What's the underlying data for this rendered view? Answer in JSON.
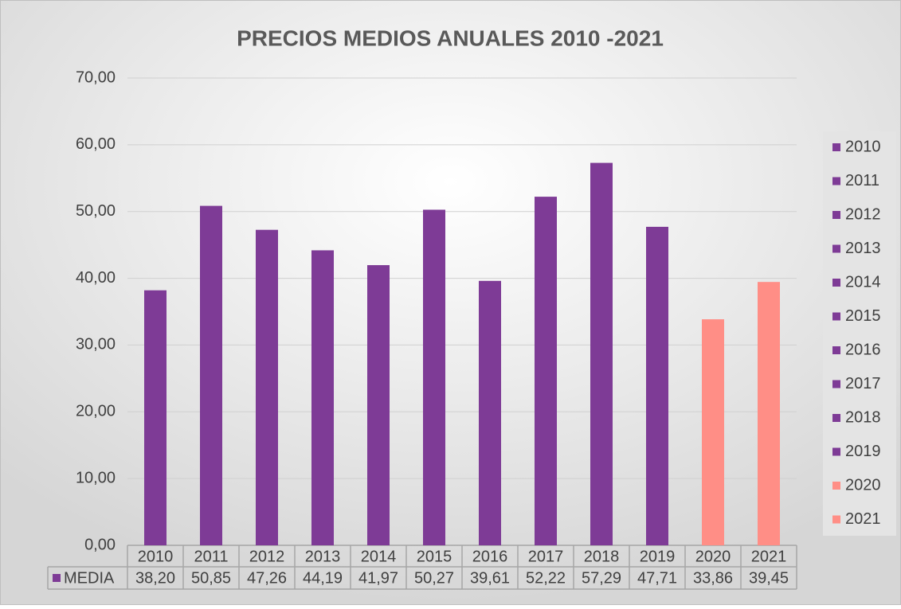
{
  "chart_data": {
    "type": "bar",
    "title": "PRECIOS MEDIOS ANUALES 2010 -2021",
    "categories": [
      "2010",
      "2011",
      "2012",
      "2013",
      "2014",
      "2015",
      "2016",
      "2017",
      "2018",
      "2019",
      "2020",
      "2021"
    ],
    "series": [
      {
        "name": "MEDIA",
        "color": "#7e3b96",
        "values": [
          38.2,
          50.85,
          47.26,
          44.19,
          41.97,
          50.27,
          39.61,
          52.22,
          57.29,
          47.71,
          33.86,
          39.45
        ],
        "value_labels": [
          "38,20",
          "50,85",
          "47,26",
          "44,19",
          "41,97",
          "50,27",
          "39,61",
          "52,22",
          "57,29",
          "47,71",
          "33,86",
          "39,45"
        ],
        "point_colors": [
          "#7e3b96",
          "#7e3b96",
          "#7e3b96",
          "#7e3b96",
          "#7e3b96",
          "#7e3b96",
          "#7e3b96",
          "#7e3b96",
          "#7e3b96",
          "#7e3b96",
          "#ff8e86",
          "#ff8e86"
        ]
      }
    ],
    "ylim": [
      0,
      70
    ],
    "yticks": [
      {
        "value": 0,
        "label": "0,00"
      },
      {
        "value": 10,
        "label": "10,00"
      },
      {
        "value": 20,
        "label": "20,00"
      },
      {
        "value": 30,
        "label": "30,00"
      },
      {
        "value": 40,
        "label": "40,00"
      },
      {
        "value": 50,
        "label": "50,00"
      },
      {
        "value": 60,
        "label": "60,00"
      },
      {
        "value": 70,
        "label": "70,00"
      }
    ],
    "grid": true,
    "legend": "right"
  }
}
